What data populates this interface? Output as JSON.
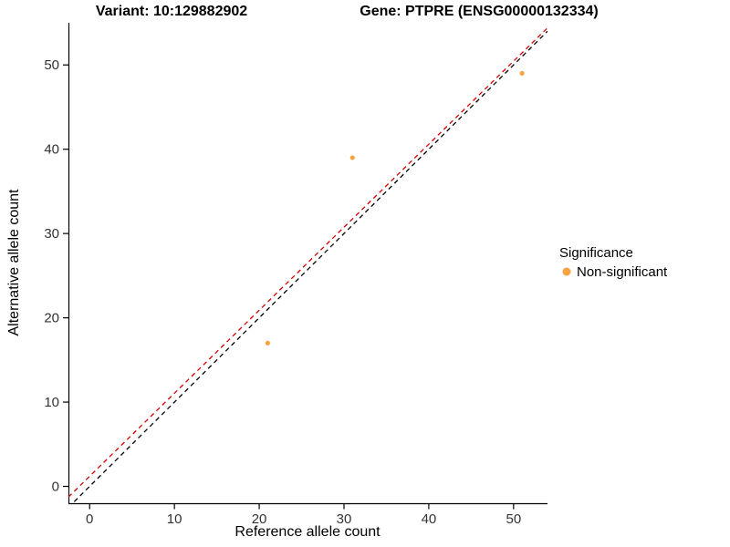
{
  "titles": {
    "left": "Variant: 10:129882902",
    "right": "Gene: PTPRE (ENSG00000132334)"
  },
  "legend": {
    "title": "Significance",
    "items": [
      {
        "label": "Non-significant",
        "color": "#F9A242"
      }
    ]
  },
  "chart_data": {
    "type": "scatter",
    "title_left": "Variant: 10:129882902",
    "title_right": "Gene: PTPRE (ENSG00000132334)",
    "xlabel": "Reference allele count",
    "ylabel": "Alternative allele count",
    "xlim": [
      -2.5,
      54
    ],
    "ylim": [
      -2,
      55
    ],
    "x_ticks": [
      0,
      10,
      20,
      30,
      40,
      50
    ],
    "y_ticks": [
      0,
      10,
      20,
      30,
      40,
      50
    ],
    "grid": false,
    "legend_position": "right",
    "point_radius": 2.6,
    "axis_color": "#000000",
    "series": [
      {
        "name": "Non-significant",
        "color": "#F9A242",
        "points": [
          [
            21,
            17
          ],
          [
            31,
            39
          ],
          [
            51,
            49
          ]
        ]
      }
    ],
    "reference_lines": [
      {
        "name": "identity-line",
        "slope": 1,
        "intercept": 0,
        "color": "#000000",
        "style": "dashed"
      },
      {
        "name": "fit-line",
        "slope": 0.985,
        "intercept": 1.2,
        "color": "#D40000",
        "style": "dashed"
      }
    ]
  }
}
